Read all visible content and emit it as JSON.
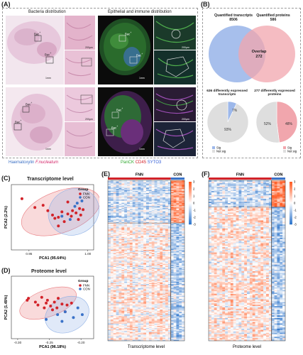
{
  "panel_labels": {
    "a": "(A)",
    "b": "(B)",
    "c": "(C)",
    "d": "(D)",
    "e": "(E)",
    "f": "(F)"
  },
  "panel_a": {
    "header_left": "Bacteria distribution",
    "header_right": "Epithelial and immune distribution",
    "bac_label": "Bac",
    "bac_superscript": "+",
    "scale_labels": [
      "1mm",
      "200μm",
      "1mm",
      "200μm",
      "1mm",
      "200μm",
      "1mm",
      "200μm"
    ],
    "stain_left": {
      "haematoxylin": "Haematoxylin",
      "fnuc": "F.nucleatum"
    },
    "stain_right": {
      "panck": "PanCK",
      "cd45": "CD45",
      "syto": "SYTO3"
    },
    "colors": {
      "haematoxylin": "#3a6fc4",
      "fnuc": "#d4286b",
      "panck": "#2fa82f",
      "cd45": "#d2232a",
      "syto": "#2f5bd6"
    }
  },
  "panel_b": {
    "venn": {
      "left_title": "Quantified transcripts",
      "left_value": "8506",
      "right_title": "Quantified proteins",
      "right_value": "586",
      "overlap_label": "Overlap",
      "overlap_value": "272",
      "left_color": "#9db8ea",
      "right_color": "#f1a6ad"
    },
    "pies": [
      {
        "title": "636 differently expressed transcripts",
        "slices": [
          {
            "name": "Sig",
            "pct": 7,
            "color": "#9db8ea"
          },
          {
            "name": "Not sig",
            "pct": 93,
            "color": "#dedede"
          }
        ],
        "labels": [
          "7%",
          "93%"
        ]
      },
      {
        "title": "277 differently expressed proteins",
        "slices": [
          {
            "name": "Sig",
            "pct": 48,
            "color": "#f1a6ad"
          },
          {
            "name": "Not sig",
            "pct": 52,
            "color": "#dedede"
          }
        ],
        "labels": [
          "48%",
          "52%"
        ]
      }
    ]
  },
  "chart_data": [
    {
      "type": "scatter",
      "panel": "C",
      "title": "Transcriptome level",
      "xlabel": "PCA1 (95.64%)",
      "ylabel": "PCA2 (2.2%)",
      "xlim": [
        0.935,
        1.005
      ],
      "ylim": [
        -0.3,
        0.3
      ],
      "xticks": [
        "0.95",
        "1.00"
      ],
      "legend": {
        "title": "Group",
        "position": "top-right"
      },
      "series": [
        {
          "name": "FNN",
          "color": "#d2232a",
          "points": [
            [
              0.944,
              0.17
            ],
            [
              0.955,
              0.09
            ],
            [
              0.962,
              0.11
            ],
            [
              0.966,
              0.06
            ],
            [
              0.97,
              0.02
            ],
            [
              0.972,
              -0.01
            ],
            [
              0.975,
              0.0
            ],
            [
              0.978,
              0.05
            ],
            [
              0.98,
              -0.04
            ],
            [
              0.983,
              0.03
            ],
            [
              0.986,
              0.01
            ],
            [
              0.987,
              0.06
            ],
            [
              0.99,
              0.04
            ],
            [
              0.992,
              -0.02
            ],
            [
              0.993,
              0.08
            ],
            [
              0.994,
              0.02
            ],
            [
              0.996,
              0.07
            ],
            [
              0.975,
              -0.08
            ],
            [
              0.983,
              0.14
            ]
          ]
        },
        {
          "name": "CON",
          "color": "#3a72c8",
          "points": [
            [
              0.978,
              0.01
            ],
            [
              0.985,
              -0.02
            ],
            [
              0.989,
              0.1
            ],
            [
              0.991,
              0.13
            ],
            [
              0.995,
              0.15
            ]
          ]
        }
      ],
      "ellipses": [
        {
          "name": "FNN",
          "color": "#e97b7f",
          "cx": 0.977,
          "cy": 0.05,
          "rx": 0.035,
          "ry": 0.19,
          "angle": -20
        },
        {
          "name": "CON",
          "color": "#8eb0e6",
          "cx": 0.988,
          "cy": 0.05,
          "rx": 0.022,
          "ry": 0.21,
          "angle": -25
        }
      ]
    },
    {
      "type": "scatter",
      "panel": "D",
      "title": "Proteome level",
      "xlabel": "PCA1 (96.18%)",
      "ylabel": "PCA2 (1.49%)",
      "xlim": [
        -0.31,
        -0.18
      ],
      "ylim": [
        -0.3,
        0.35
      ],
      "xticks": [
        "-0.30",
        "-0.25",
        "-0.20"
      ],
      "legend": {
        "title": "Group",
        "position": "top-right"
      },
      "series": [
        {
          "name": "FNN",
          "color": "#d2232a",
          "points": [
            [
              -0.285,
              0.1
            ],
            [
              -0.283,
              0.12
            ],
            [
              -0.272,
              0.08
            ],
            [
              -0.268,
              0.05
            ],
            [
              -0.262,
              0.13
            ],
            [
              -0.258,
              0.02
            ],
            [
              -0.255,
              0.07
            ],
            [
              -0.253,
              0.1
            ],
            [
              -0.248,
              0.04
            ],
            [
              -0.245,
              0.0
            ],
            [
              -0.242,
              0.08
            ],
            [
              -0.238,
              0.02
            ],
            [
              -0.236,
              0.12
            ],
            [
              -0.23,
              0.06
            ],
            [
              -0.225,
              -0.02
            ],
            [
              -0.222,
              0.05
            ],
            [
              -0.215,
              0.07
            ]
          ]
        },
        {
          "name": "CON",
          "color": "#3a72c8",
          "points": [
            [
              -0.255,
              -0.1
            ],
            [
              -0.237,
              -0.05
            ],
            [
              -0.23,
              -0.12
            ],
            [
              -0.225,
              -0.02
            ],
            [
              -0.212,
              -0.08
            ],
            [
              -0.205,
              0.02
            ],
            [
              -0.198,
              -0.05
            ]
          ]
        }
      ],
      "ellipses": [
        {
          "name": "FNN",
          "color": "#e97b7f",
          "cx": -0.252,
          "cy": 0.07,
          "rx": 0.047,
          "ry": 0.14,
          "angle": -20
        },
        {
          "name": "CON",
          "color": "#8eb0e6",
          "cx": -0.222,
          "cy": -0.05,
          "rx": 0.036,
          "ry": 0.18,
          "angle": -25
        }
      ]
    },
    {
      "type": "heatmap",
      "panel": "E",
      "title": "Transcriptome level",
      "groups": [
        {
          "name": "FNN",
          "color": "#d2232a",
          "cols": 23
        },
        {
          "name": "CON",
          "color": "#3a72c8",
          "cols": 5
        }
      ],
      "scale": [
        3,
        2,
        1,
        0,
        -1,
        -2,
        -3
      ],
      "blocks": [
        {
          "rows": 40,
          "fnn_bias": -0.35,
          "con_bias": 0.9
        },
        {
          "rows": 110,
          "fnn_bias": 0.15,
          "con_bias": -0.55
        }
      ]
    },
    {
      "type": "heatmap",
      "panel": "F",
      "title": "Proteome level",
      "groups": [
        {
          "name": "FNN",
          "color": "#d2232a",
          "cols": 23
        },
        {
          "name": "CON",
          "color": "#3a72c8",
          "cols": 5
        }
      ],
      "scale": [
        3,
        2,
        1,
        0,
        -1,
        -2,
        -3
      ],
      "blocks": [
        {
          "rows": 20,
          "fnn_bias": -0.35,
          "con_bias": 1.1
        },
        {
          "rows": 100,
          "fnn_bias": 0.2,
          "con_bias": -0.6
        }
      ]
    }
  ]
}
